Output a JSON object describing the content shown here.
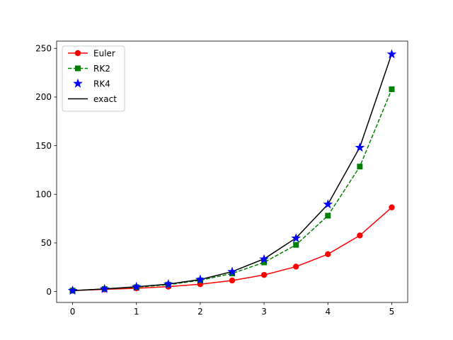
{
  "chart_data": {
    "type": "line",
    "title": "",
    "xlabel": "",
    "ylabel": "",
    "xlim": [
      -0.25,
      5.25
    ],
    "ylim": [
      -11.2,
      257.5
    ],
    "grid": false,
    "legend_position": "top-left",
    "x_ticks": [
      0,
      1,
      2,
      3,
      4,
      5
    ],
    "y_ticks": [
      0,
      50,
      100,
      150,
      200,
      250
    ],
    "x": [
      0,
      0.5,
      1,
      1.5,
      2,
      2.5,
      3,
      3.5,
      4,
      4.5,
      5
    ],
    "series": [
      {
        "name": "Euler",
        "color": "#ff0000",
        "line_style": "solid",
        "marker": "circle",
        "values": [
          1.0,
          2.25,
          3.38,
          5.06,
          7.59,
          11.39,
          17.09,
          25.63,
          38.44,
          57.67,
          86.5
        ]
      },
      {
        "name": "RK2",
        "color": "#008000",
        "line_style": "dashed",
        "marker": "square",
        "values": [
          1.0,
          2.63,
          4.48,
          7.09,
          11.54,
          18.63,
          30.0,
          48.0,
          78.0,
          128.5,
          208.0
        ]
      },
      {
        "name": "RK4",
        "color": "#0000ff",
        "line_style": "none",
        "marker": "star",
        "values": [
          1.0,
          2.65,
          4.84,
          7.56,
          12.3,
          20.4,
          33.3,
          54.8,
          89.7,
          148.0,
          244.0
        ]
      },
      {
        "name": "exact",
        "color": "#000000",
        "line_style": "solid",
        "marker": "none",
        "values": [
          1.0,
          2.7,
          4.9,
          7.6,
          12.4,
          20.5,
          33.6,
          55.0,
          89.7,
          148.4,
          244.5
        ]
      }
    ]
  }
}
